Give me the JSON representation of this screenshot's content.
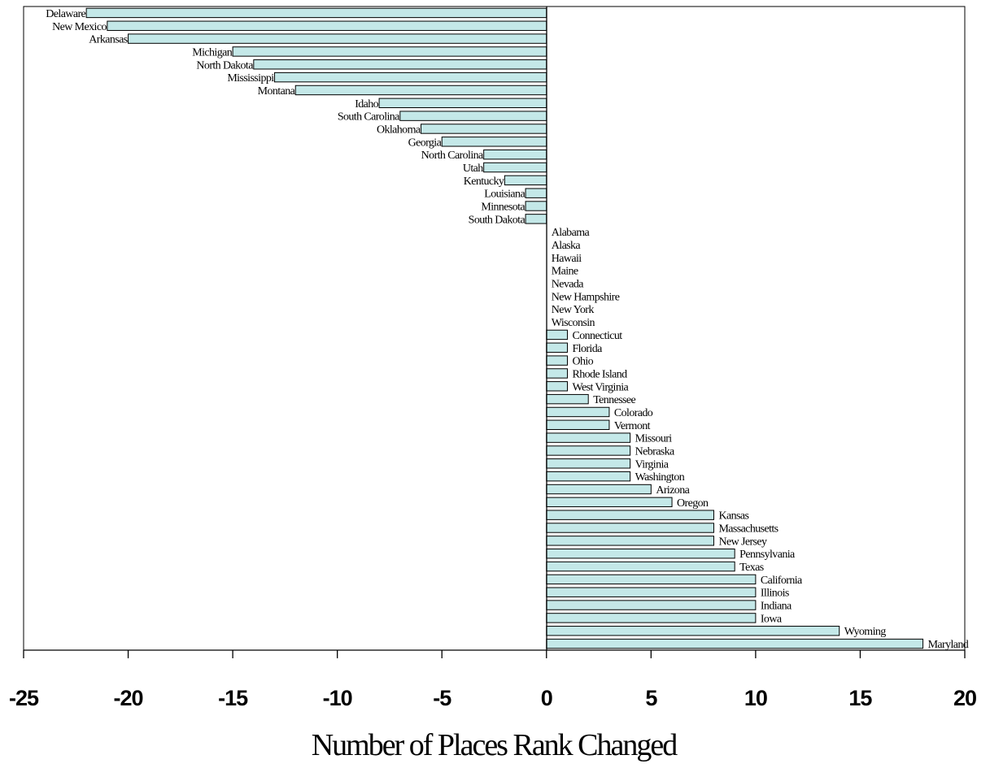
{
  "chart_data": {
    "type": "bar",
    "orientation": "horizontal",
    "xlabel": "Number of Places Rank Changed",
    "ylabel": "",
    "xlim": [
      -25,
      20
    ],
    "xticks": [
      "-25",
      "-20",
      "-15",
      "-10",
      "-5",
      "0",
      "5",
      "10",
      "15",
      "20"
    ],
    "grid": false,
    "legend": "none",
    "bar_color": "#c4e8e8",
    "bar_edge_color": "#000000",
    "categories": [
      "Delaware",
      "New Mexico",
      "Arkansas",
      "Michigan",
      "North Dakota",
      "Mississippi",
      "Montana",
      "Idaho",
      "South Carolina",
      "Oklahoma",
      "Georgia",
      "North Carolina",
      "Utah",
      "Kentucky",
      "Louisiana",
      "Minnesota",
      "South Dakota",
      "Alabama",
      "Alaska",
      "Hawaii",
      "Maine",
      "Nevada",
      "New Hampshire",
      "New York",
      "Wisconsin",
      "Connecticut",
      "Florida",
      "Ohio",
      "Rhode Island",
      "West Virginia",
      "Tennessee",
      "Colorado",
      "Vermont",
      "Missouri",
      "Nebraska",
      "Virginia",
      "Washington",
      "Arizona",
      "Oregon",
      "Kansas",
      "Massachusetts",
      "New Jersey",
      "Pennsylvania",
      "Texas",
      "California",
      "Illinois",
      "Indiana",
      "Iowa",
      "Wyoming",
      "Maryland"
    ],
    "values": [
      -22,
      -21,
      -20,
      -15,
      -14,
      -13,
      -12,
      -8,
      -7,
      -6,
      -5,
      -3,
      -3,
      -2,
      -1,
      -1,
      -1,
      0,
      0,
      0,
      0,
      0,
      0,
      0,
      0,
      1,
      1,
      1,
      1,
      1,
      2,
      3,
      3,
      4,
      4,
      4,
      4,
      5,
      6,
      8,
      8,
      8,
      9,
      9,
      10,
      10,
      10,
      10,
      14,
      18
    ]
  }
}
